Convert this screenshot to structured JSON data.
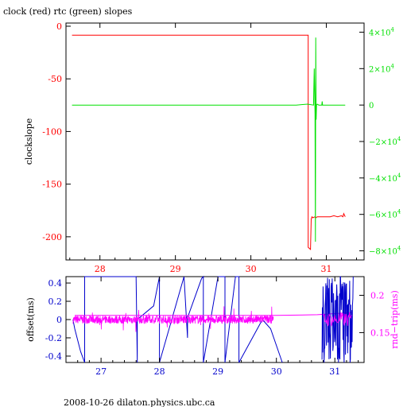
{
  "title": "clock (red) rtc (green) slopes",
  "footer": "2008-10-26 dilaton.physics.ubc.ca",
  "colors": {
    "clock": "#ff0000",
    "rtc": "#00e000",
    "offset": "#0000cc",
    "rtt": "#ff00ff",
    "axes": "#000000"
  },
  "chart_data": [
    {
      "type": "line",
      "ylabel": "clockslope",
      "y2label": "",
      "xlim": [
        27.55,
        31.5
      ],
      "ylim": [
        -222,
        3
      ],
      "y2lim": [
        -85000,
        45000
      ],
      "xticks": [
        "28",
        "29",
        "30",
        "31"
      ],
      "yticks": [
        "0",
        "-50",
        "-100",
        "-150",
        "-200"
      ],
      "y2ticks": [
        {
          "value": 40000,
          "base": "4×10",
          "exp": "4"
        },
        {
          "value": 20000,
          "base": "2×10",
          "exp": "4"
        },
        {
          "value": 0,
          "base": "0",
          "exp": ""
        },
        {
          "value": -20000,
          "base": "−2×10",
          "exp": "4"
        },
        {
          "value": -40000,
          "base": "−4×10",
          "exp": "4"
        },
        {
          "value": -60000,
          "base": "−6×10",
          "exp": "4"
        },
        {
          "value": -80000,
          "base": "−8×10",
          "exp": "4"
        }
      ],
      "series": [
        {
          "axis": "left",
          "x": [
            27.63,
            30.76,
            30.76,
            30.79,
            30.8,
            30.81,
            30.82,
            30.85,
            30.86,
            30.88,
            30.95,
            31.05,
            31.1,
            31.15,
            31.2,
            31.22,
            31.23,
            31.25
          ],
          "y": [
            -8.5,
            -8.5,
            -210,
            -212,
            -183,
            -181,
            -182,
            -181,
            -182,
            -181,
            -181,
            -181,
            -180,
            -181,
            -180,
            -181,
            -178,
            -181
          ]
        },
        {
          "axis": "right",
          "x": [
            27.63,
            30.6,
            30.75,
            30.83,
            30.84,
            30.85,
            30.855,
            30.86,
            30.865,
            30.87,
            30.88,
            30.9,
            30.94,
            30.945,
            30.95,
            31.0,
            31.25
          ],
          "y": [
            0,
            0,
            500,
            0,
            20000,
            -5000,
            -75000,
            37000,
            -8000,
            0,
            500,
            0,
            0,
            2000,
            0,
            0,
            0
          ]
        }
      ]
    },
    {
      "type": "line",
      "ylabel": "offset(ms)",
      "y2label": "rnd−trip(ms)",
      "xlim": [
        26.4,
        31.5
      ],
      "ylim": [
        -0.47,
        0.47
      ],
      "y2lim": [
        0.11,
        0.225
      ],
      "xticks": [
        "27",
        "28",
        "29",
        "30",
        "31"
      ],
      "yticks": [
        "0.4",
        "0.2",
        "0",
        "-0.2",
        "-0.4"
      ],
      "y2ticks": [
        "0.2",
        "0.15"
      ],
      "series": [
        {
          "axis": "left",
          "x": [
            26.52,
            26.55,
            26.65,
            26.72,
            26.72,
            27.6,
            27.62,
            27.62,
            27.9,
            28.0,
            28.0,
            28.42,
            28.48,
            28.48,
            28.72,
            28.75,
            28.75,
            29.0,
            29.12,
            29.12,
            29.3,
            29.36,
            29.36,
            29.76,
            29.9,
            30.1
          ],
          "y": [
            0,
            -0.1,
            -0.35,
            -0.47,
            0.47,
            0.47,
            -0.47,
            0.0,
            0.15,
            0.47,
            -0.47,
            0.47,
            -0.2,
            0.02,
            0.45,
            0.47,
            -0.47,
            0.47,
            0.47,
            -0.47,
            0.47,
            0.47,
            -0.47,
            0.0,
            -0.1,
            -0.47
          ]
        },
        {
          "axis": "right",
          "x": [
            26.55,
            30.0,
            30.7,
            31.3
          ],
          "y": [
            0.173,
            0.173,
            0.174,
            0.177
          ]
        }
      ]
    }
  ]
}
